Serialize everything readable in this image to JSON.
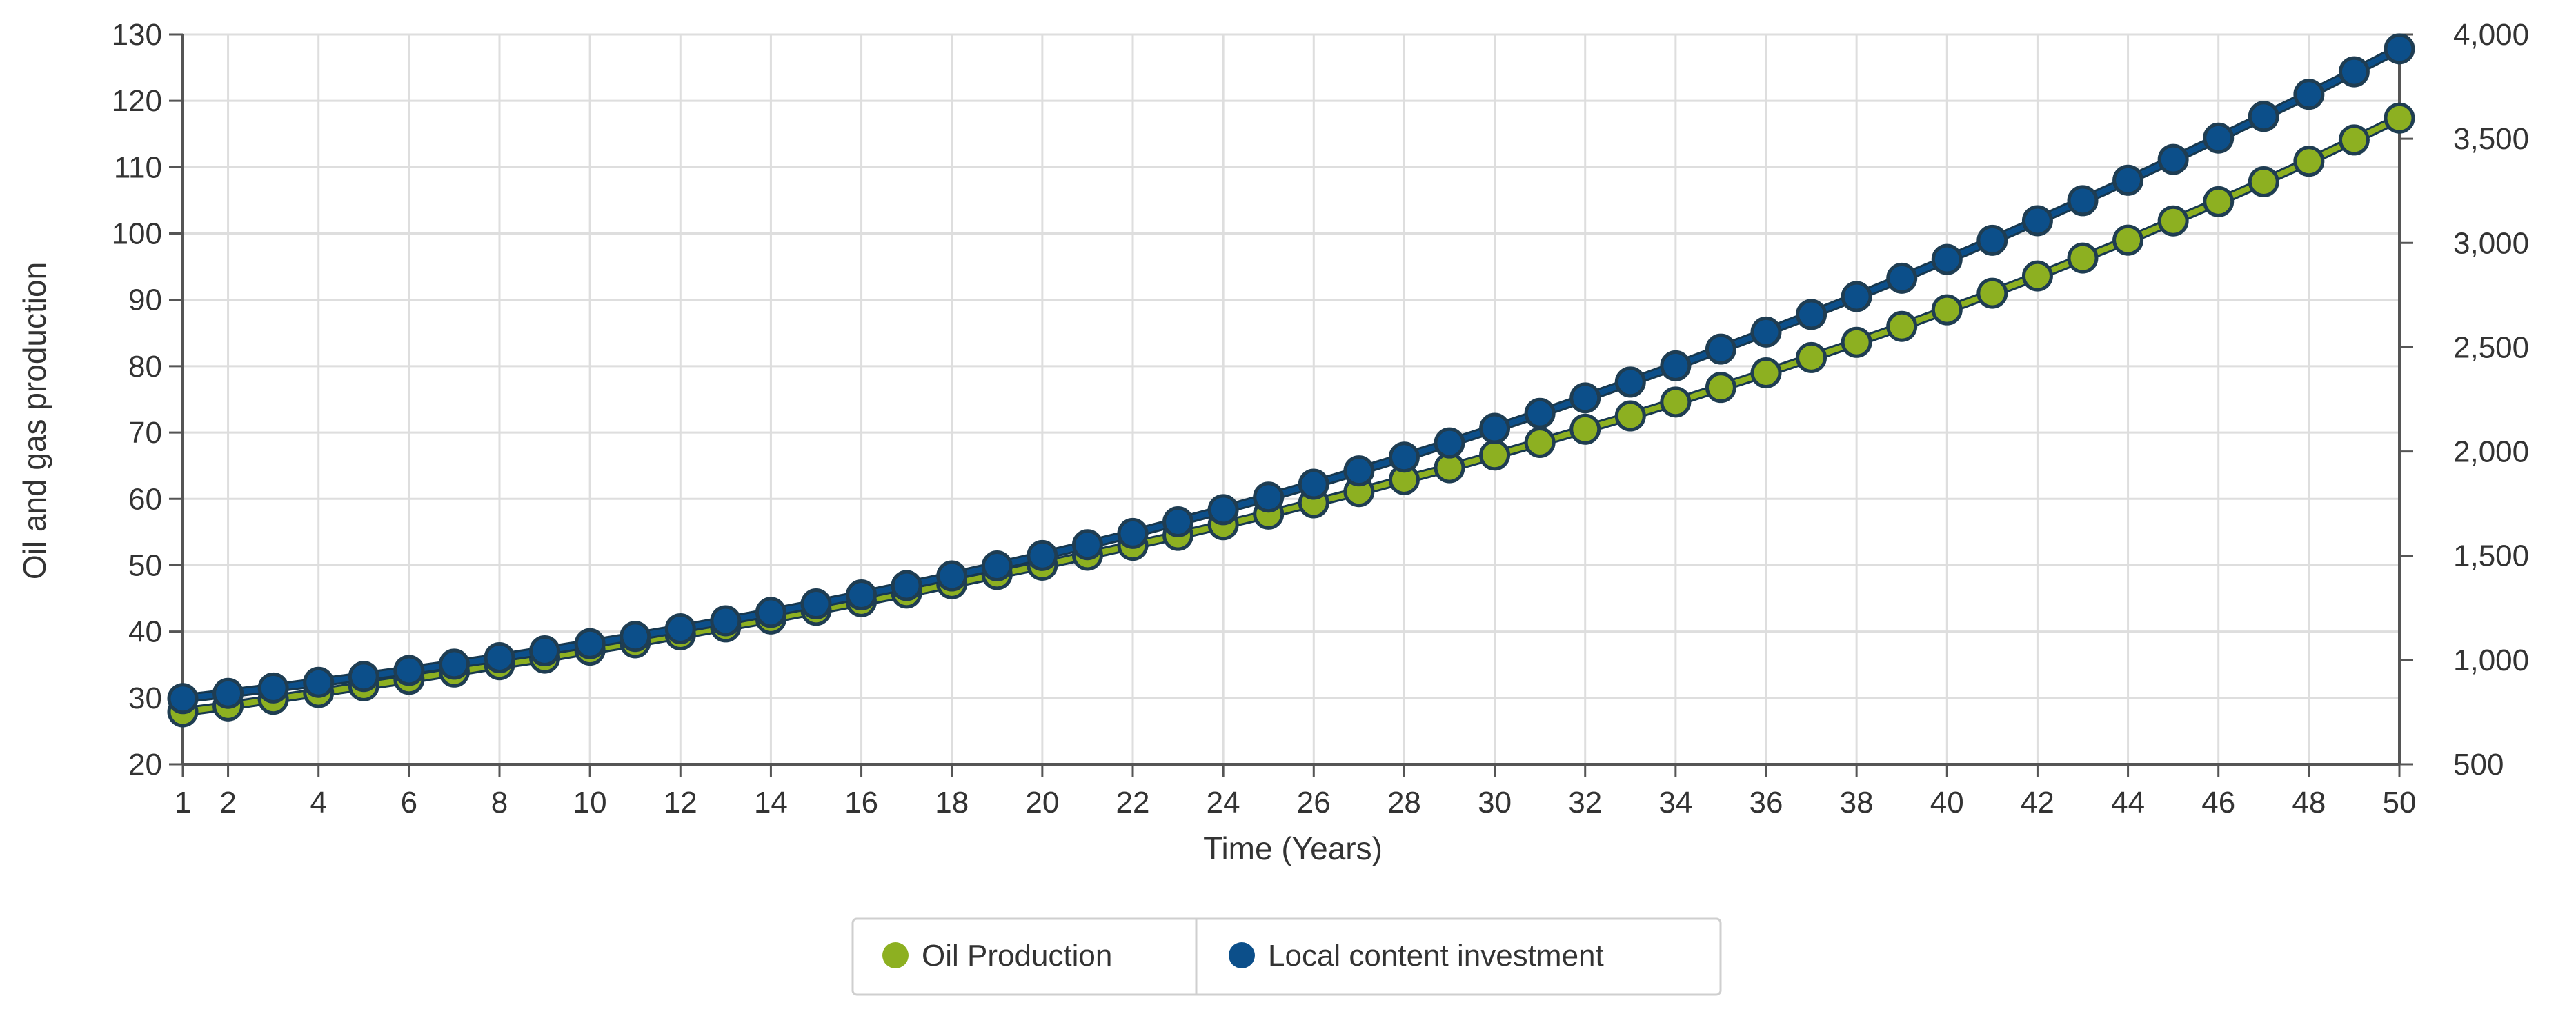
{
  "chart_data": {
    "type": "line",
    "xlabel": "Time (Years)",
    "ylabel_left": "Oil and gas production",
    "ylabel_right": "",
    "x": [
      1,
      2,
      3,
      4,
      5,
      6,
      7,
      8,
      9,
      10,
      11,
      12,
      13,
      14,
      15,
      16,
      17,
      18,
      19,
      20,
      21,
      22,
      23,
      24,
      25,
      26,
      27,
      28,
      29,
      30,
      31,
      32,
      33,
      34,
      35,
      36,
      37,
      38,
      39,
      40,
      41,
      42,
      43,
      44,
      45,
      46,
      47,
      48,
      49,
      50
    ],
    "xlim": [
      1,
      50
    ],
    "x_ticks": [
      "1",
      "2",
      "4",
      "6",
      "8",
      "10",
      "12",
      "14",
      "16",
      "18",
      "20",
      "22",
      "24",
      "26",
      "28",
      "30",
      "32",
      "34",
      "36",
      "38",
      "40",
      "42",
      "44",
      "46",
      "48",
      "50"
    ],
    "ylim_left": [
      20,
      130
    ],
    "y_ticks_left": [
      "20",
      "30",
      "40",
      "50",
      "60",
      "70",
      "80",
      "90",
      "100",
      "110",
      "120",
      "130"
    ],
    "ylim_right": [
      500,
      4000
    ],
    "y_ticks_right": [
      "500",
      "1,000",
      "1,500",
      "2,000",
      "2,500",
      "3,000",
      "3,500",
      "4,000"
    ],
    "grid": true,
    "legend_position": "bottom-center",
    "series": [
      {
        "name": "Oil Production",
        "axis": "left",
        "color": "#8db021",
        "values": [
          27.9,
          28.8,
          29.8,
          30.8,
          31.8,
          32.8,
          33.9,
          35.0,
          36.0,
          37.2,
          38.3,
          39.5,
          40.7,
          41.9,
          43.2,
          44.5,
          45.8,
          47.2,
          48.6,
          50.0,
          51.5,
          53.0,
          54.5,
          56.1,
          57.7,
          59.4,
          61.1,
          62.9,
          64.7,
          66.6,
          68.5,
          70.5,
          72.5,
          74.6,
          76.8,
          79.0,
          81.3,
          83.6,
          86.0,
          88.5,
          91.0,
          93.6,
          96.3,
          99.0,
          101.9,
          104.8,
          107.8,
          110.9,
          114.1,
          117.4
        ]
      },
      {
        "name": "Local content investment",
        "axis": "right",
        "color": "#0c4f8a",
        "values": [
          815,
          840,
          866,
          893,
          921,
          950,
          980,
          1011,
          1044,
          1078,
          1113,
          1150,
          1188,
          1228,
          1269,
          1312,
          1357,
          1403,
          1451,
          1501,
          1553,
          1607,
          1663,
          1721,
          1781,
          1843,
          1907,
          1973,
          2041,
          2111,
          2183,
          2257,
          2333,
          2411,
          2491,
          2573,
          2657,
          2743,
          2831,
          2921,
          3013,
          3107,
          3203,
          3301,
          3401,
          3503,
          3607,
          3713,
          3821,
          3931
        ]
      }
    ]
  }
}
